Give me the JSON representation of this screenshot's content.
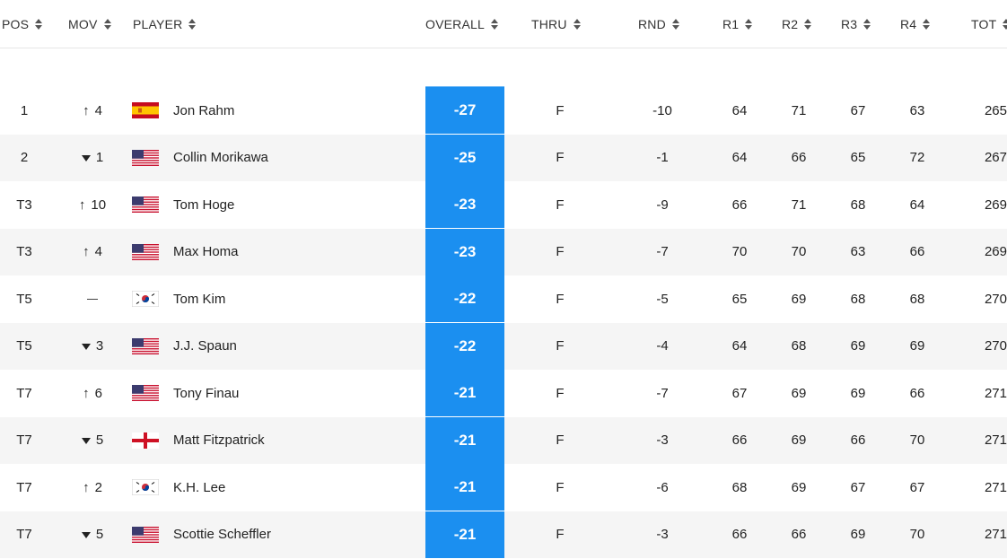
{
  "columns": {
    "pos": "POS",
    "mov": "MOV",
    "player": "PLAYER",
    "overall": "OVERALL",
    "thru": "THRU",
    "rnd": "RND",
    "r1": "R1",
    "r2": "R2",
    "r3": "R3",
    "r4": "R4",
    "tot": "TOT"
  },
  "colors": {
    "overall_bg": "#1b8ff0",
    "row_alt": "#f5f5f5"
  },
  "rows": [
    {
      "pos": "1",
      "mov_dir": "up",
      "mov": "4",
      "flag": "spain-flag",
      "player": "Jon Rahm",
      "overall": "-27",
      "thru": "F",
      "rnd": "-10",
      "r1": "64",
      "r2": "71",
      "r3": "67",
      "r4": "63",
      "tot": "265"
    },
    {
      "pos": "2",
      "mov_dir": "down",
      "mov": "1",
      "flag": "usa-flag",
      "player": "Collin Morikawa",
      "overall": "-25",
      "thru": "F",
      "rnd": "-1",
      "r1": "64",
      "r2": "66",
      "r3": "65",
      "r4": "72",
      "tot": "267"
    },
    {
      "pos": "T3",
      "mov_dir": "up",
      "mov": "10",
      "flag": "usa-flag",
      "player": "Tom Hoge",
      "overall": "-23",
      "thru": "F",
      "rnd": "-9",
      "r1": "66",
      "r2": "71",
      "r3": "68",
      "r4": "64",
      "tot": "269"
    },
    {
      "pos": "T3",
      "mov_dir": "up",
      "mov": "4",
      "flag": "usa-flag",
      "player": "Max Homa",
      "overall": "-23",
      "thru": "F",
      "rnd": "-7",
      "r1": "70",
      "r2": "70",
      "r3": "63",
      "r4": "66",
      "tot": "269"
    },
    {
      "pos": "T5",
      "mov_dir": "none",
      "mov": "",
      "flag": "korea-flag",
      "player": "Tom Kim",
      "overall": "-22",
      "thru": "F",
      "rnd": "-5",
      "r1": "65",
      "r2": "69",
      "r3": "68",
      "r4": "68",
      "tot": "270"
    },
    {
      "pos": "T5",
      "mov_dir": "down",
      "mov": "3",
      "flag": "usa-flag",
      "player": "J.J. Spaun",
      "overall": "-22",
      "thru": "F",
      "rnd": "-4",
      "r1": "64",
      "r2": "68",
      "r3": "69",
      "r4": "69",
      "tot": "270"
    },
    {
      "pos": "T7",
      "mov_dir": "up",
      "mov": "6",
      "flag": "usa-flag",
      "player": "Tony Finau",
      "overall": "-21",
      "thru": "F",
      "rnd": "-7",
      "r1": "67",
      "r2": "69",
      "r3": "69",
      "r4": "66",
      "tot": "271"
    },
    {
      "pos": "T7",
      "mov_dir": "down",
      "mov": "5",
      "flag": "england-flag",
      "player": "Matt Fitzpatrick",
      "overall": "-21",
      "thru": "F",
      "rnd": "-3",
      "r1": "66",
      "r2": "69",
      "r3": "66",
      "r4": "70",
      "tot": "271"
    },
    {
      "pos": "T7",
      "mov_dir": "up",
      "mov": "2",
      "flag": "korea-flag",
      "player": "K.H. Lee",
      "overall": "-21",
      "thru": "F",
      "rnd": "-6",
      "r1": "68",
      "r2": "69",
      "r3": "67",
      "r4": "67",
      "tot": "271"
    },
    {
      "pos": "T7",
      "mov_dir": "down",
      "mov": "5",
      "flag": "usa-flag",
      "player": "Scottie Scheffler",
      "overall": "-21",
      "thru": "F",
      "rnd": "-3",
      "r1": "66",
      "r2": "66",
      "r3": "69",
      "r4": "70",
      "tot": "271"
    }
  ]
}
